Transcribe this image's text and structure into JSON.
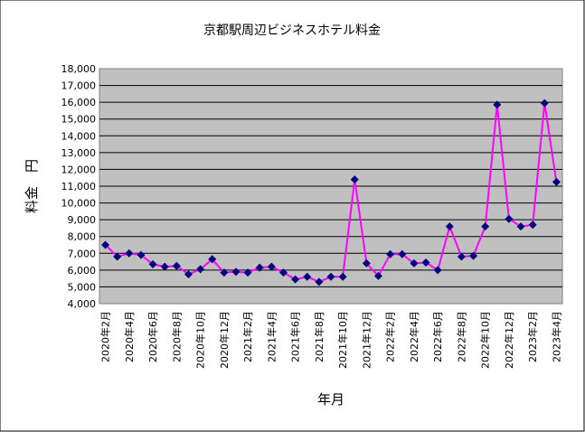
{
  "chart_data": {
    "type": "line",
    "title": "京都駅周辺ビジネスホテル料金",
    "xlabel": "年月",
    "ylabel": "料金　円",
    "ylim": [
      4000,
      18000
    ],
    "ytick_step": 1000,
    "ytick_labels": [
      "4,000",
      "5,000",
      "6,000",
      "7,000",
      "8,000",
      "9,000",
      "10,000",
      "11,000",
      "12,000",
      "13,000",
      "14,000",
      "15,000",
      "16,000",
      "17,000",
      "18,000"
    ],
    "grid": true,
    "legend": "none",
    "line_color": "#ff00ff",
    "marker_color": "#000080",
    "categories": [
      "2020年2月",
      "2020年3月",
      "2020年4月",
      "2020年5月",
      "2020年6月",
      "2020年7月",
      "2020年8月",
      "2020年9月",
      "2020年10月",
      "2020年11月",
      "2020年12月",
      "2021年1月",
      "2021年2月",
      "2021年3月",
      "2021年4月",
      "2021年5月",
      "2021年6月",
      "2021年7月",
      "2021年8月",
      "2021年9月",
      "2021年10月",
      "2021年11月",
      "2021年12月",
      "2022年1月",
      "2022年2月",
      "2022年3月",
      "2022年4月",
      "2022年5月",
      "2022年6月",
      "2022年7月",
      "2022年8月",
      "2022年9月",
      "2022年10月",
      "2022年11月",
      "2022年12月",
      "2023年1月",
      "2023年2月",
      "2023年3月",
      "2023年4月"
    ],
    "visible_tick_labels": [
      "2020年2月",
      "2020年4月",
      "2020年6月",
      "2020年8月",
      "2020年10月",
      "2020年12月",
      "2021年2月",
      "2021年4月",
      "2021年6月",
      "2021年8月",
      "2021年10月",
      "2021年12月",
      "2022年2月",
      "2022年4月",
      "2022年6月",
      "2022年8月",
      "2022年10月",
      "2022年12月",
      "2023年2月",
      "2023年4月"
    ],
    "series": [
      {
        "name": "料金",
        "values": [
          7500,
          6800,
          7000,
          6900,
          6350,
          6200,
          6250,
          5750,
          6050,
          6650,
          5850,
          5900,
          5850,
          6150,
          6200,
          5850,
          5450,
          5600,
          5300,
          5600,
          5600,
          11400,
          6400,
          5650,
          6950,
          6950,
          6400,
          6450,
          6000,
          8600,
          6800,
          6850,
          8600,
          15850,
          9050,
          8600,
          8700,
          15950,
          11250
        ]
      }
    ]
  }
}
